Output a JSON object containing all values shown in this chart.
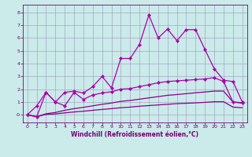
{
  "title": "",
  "xlabel": "Windchill (Refroidissement éolien,°C)",
  "ylabel": "",
  "xlim": [
    -0.5,
    23.5
  ],
  "ylim": [
    -0.6,
    8.6
  ],
  "xticks": [
    0,
    1,
    2,
    3,
    4,
    5,
    6,
    7,
    8,
    9,
    10,
    11,
    12,
    13,
    14,
    15,
    16,
    17,
    18,
    19,
    20,
    21,
    22,
    23
  ],
  "yticks": [
    0,
    1,
    2,
    3,
    4,
    5,
    6,
    7,
    8
  ],
  "ytick_labels": [
    "-0",
    "1",
    "2",
    "3",
    "4",
    "5",
    "6",
    "7",
    "8"
  ],
  "background_color": "#cbeaea",
  "grid_color": "#9999bb",
  "series": [
    {
      "x": [
        0,
        1,
        2,
        3,
        4,
        5,
        6,
        7,
        8,
        9,
        10,
        11,
        12,
        13,
        14,
        15,
        16,
        17,
        18,
        19,
        20,
        21,
        22,
        23
      ],
      "y": [
        0.0,
        0.7,
        1.75,
        1.0,
        1.75,
        1.85,
        1.7,
        2.2,
        3.0,
        2.1,
        4.4,
        4.4,
        5.5,
        7.8,
        6.0,
        6.7,
        5.8,
        6.65,
        6.65,
        5.1,
        3.6,
        2.7,
        2.6,
        1.0
      ],
      "marker": "D",
      "markersize": 2.2,
      "lw": 0.9,
      "color": "#aa00aa"
    },
    {
      "x": [
        0,
        1,
        2,
        3,
        4,
        5,
        6,
        7,
        8,
        9,
        10,
        11,
        12,
        13,
        14,
        15,
        16,
        17,
        18,
        19,
        20,
        21,
        22,
        23
      ],
      "y": [
        0.0,
        -0.15,
        1.75,
        1.0,
        0.7,
        1.75,
        1.2,
        1.55,
        1.7,
        1.8,
        2.0,
        2.05,
        2.2,
        2.35,
        2.5,
        2.6,
        2.65,
        2.7,
        2.75,
        2.8,
        2.9,
        2.6,
        1.0,
        0.95
      ],
      "marker": "D",
      "markersize": 2.2,
      "lw": 0.9,
      "color": "#aa00aa"
    },
    {
      "x": [
        0,
        1,
        2,
        3,
        4,
        5,
        6,
        7,
        8,
        9,
        10,
        11,
        12,
        13,
        14,
        15,
        16,
        17,
        18,
        19,
        20,
        21,
        22,
        23
      ],
      "y": [
        0.0,
        -0.15,
        0.08,
        0.18,
        0.35,
        0.48,
        0.58,
        0.7,
        0.82,
        0.92,
        1.05,
        1.12,
        1.22,
        1.32,
        1.42,
        1.52,
        1.58,
        1.65,
        1.72,
        1.78,
        1.85,
        1.85,
        1.0,
        0.9
      ],
      "marker": null,
      "lw": 0.9,
      "color": "#880088"
    },
    {
      "x": [
        0,
        1,
        2,
        3,
        4,
        5,
        6,
        7,
        8,
        9,
        10,
        11,
        12,
        13,
        14,
        15,
        16,
        17,
        18,
        19,
        20,
        21,
        22,
        23
      ],
      "y": [
        0.0,
        -0.15,
        0.03,
        0.07,
        0.15,
        0.22,
        0.28,
        0.35,
        0.42,
        0.48,
        0.55,
        0.6,
        0.67,
        0.72,
        0.77,
        0.82,
        0.87,
        0.9,
        0.93,
        0.97,
        1.02,
        1.02,
        0.6,
        0.55
      ],
      "marker": null,
      "lw": 0.9,
      "color": "#880088"
    }
  ],
  "tick_fontsize": 4.5,
  "xlabel_fontsize": 5.5,
  "tick_color": "#770077",
  "spine_color": "#770077"
}
